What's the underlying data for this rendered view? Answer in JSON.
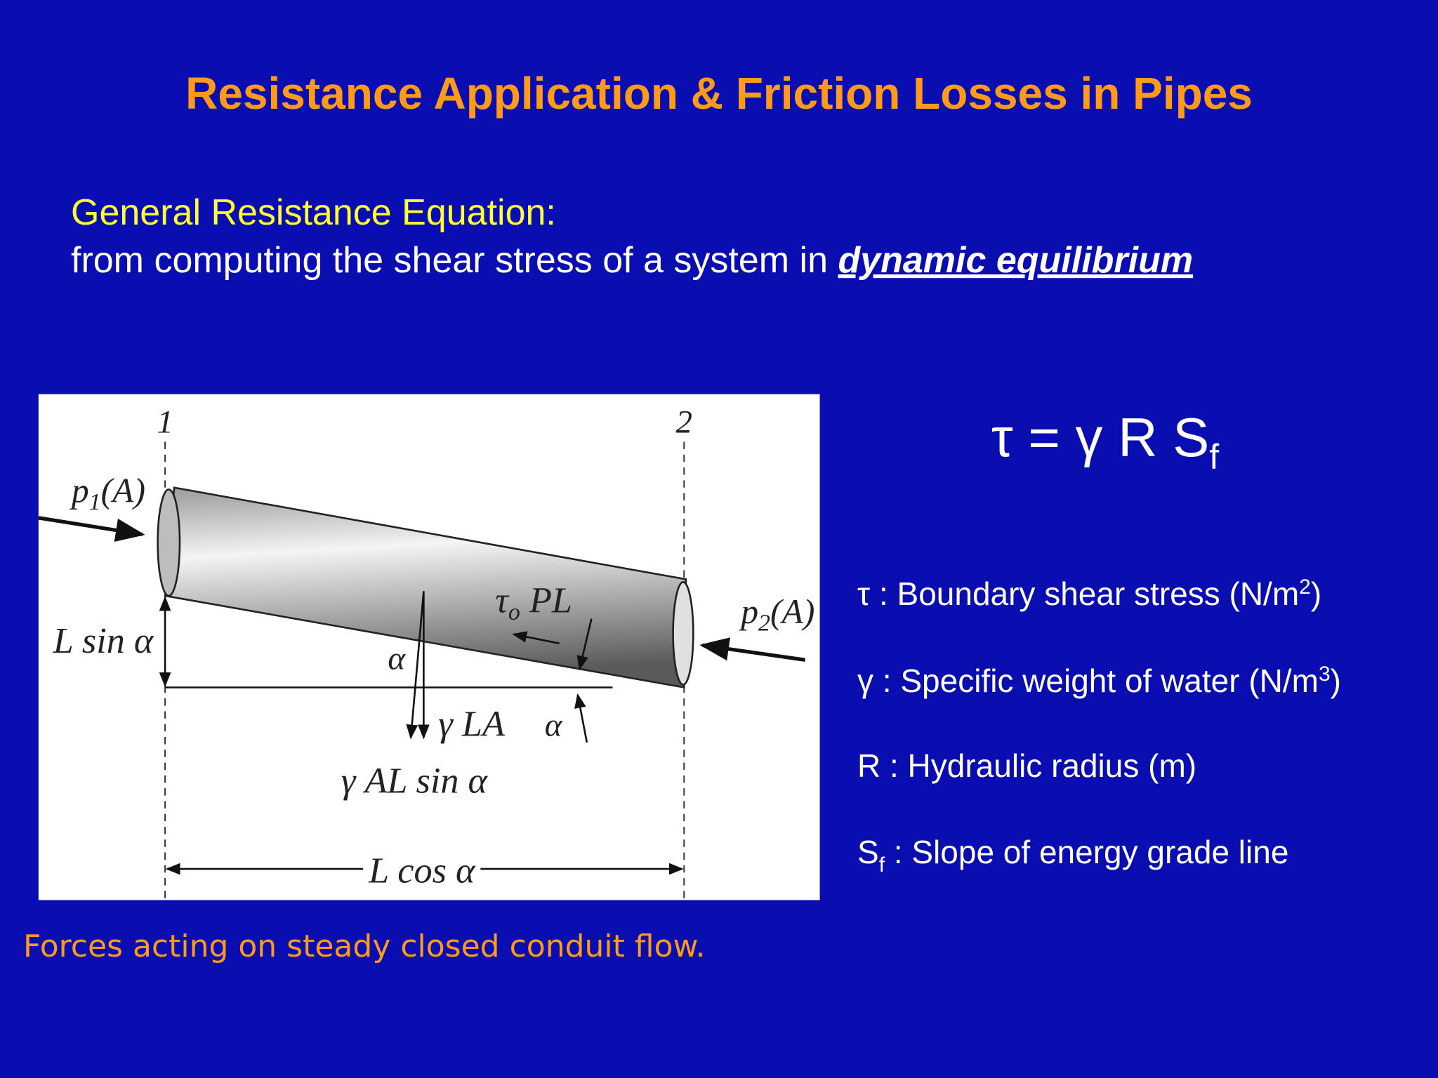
{
  "title": "Resistance Application & Friction Losses in Pipes",
  "subtitle": {
    "heading": "General Resistance Equation:",
    "line": "from computing the shear stress of a system in",
    "emphasis": "dynamic equilibrium"
  },
  "equation": {
    "main": "τ = γ R S",
    "sub": "f"
  },
  "definitions": [
    [
      "τ : Boundary shear stress (N/m",
      "2",
      ")"
    ],
    [
      "γ : Specific weight of water (N/m",
      "3",
      ")"
    ],
    [
      "R : Hydraulic radius (m)"
    ],
    [
      "S",
      "f",
      " : Slope of energy grade line"
    ]
  ],
  "diagram": {
    "section_1": "1",
    "section_2": "2",
    "p1": [
      "p",
      "1",
      "(A)"
    ],
    "p2": [
      "p",
      "2",
      "(A)"
    ],
    "l_sin": "L sin α",
    "shear": [
      "τ",
      "o",
      " PL"
    ],
    "alpha_1": "α",
    "weight": "γ LA",
    "alpha_2": "α",
    "weight_component": "γ AL sin α",
    "l_cos": "L cos α"
  },
  "caption": "Forces acting on steady closed conduit flow."
}
